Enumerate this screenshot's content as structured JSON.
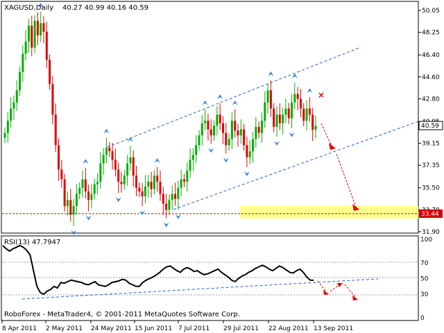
{
  "chart_data": [
    {
      "type": "candlestick",
      "symbol_label": "XAGUSD,Daily",
      "ohlc_label": "40.27 40.99 40.16 40.59",
      "y_ticks": [
        "50.05",
        "48.25",
        "46.40",
        "44.60",
        "42.80",
        "40.95",
        "39.15",
        "37.35",
        "35.50",
        "33.70",
        "31.90"
      ],
      "ylim": [
        31.9,
        50.05
      ],
      "x_ticks": [
        "8 Apr 2011",
        "2 May 2011",
        "24 May 2011",
        "15 Jun 2011",
        "7 Jul 2011",
        "29 Jul 2011",
        "22 Aug 2011",
        "13 Sep 2011"
      ],
      "current_price": "40.59",
      "support_level": "33.44",
      "footer_text": "RoboForex - MetaTrader4, © 2001-2011 MetaQuotes Software Corp.",
      "closes": [
        40.0,
        41.0,
        42.0,
        42.5,
        43.5,
        45.0,
        46.5,
        47.5,
        48.8,
        47.0,
        49.2,
        48.0,
        49.0,
        48.3,
        46.0,
        44.0,
        41.5,
        39.0,
        37.0,
        36.2,
        34.0,
        34.5,
        33.3,
        34.0,
        35.0,
        35.5,
        36.2,
        35.2,
        34.5,
        35.0,
        35.8,
        36.0,
        37.5,
        38.2,
        38.8,
        38.5,
        37.8,
        37.0,
        36.0,
        35.8,
        36.5,
        37.5,
        38.0,
        36.5,
        35.5,
        35.2,
        34.8,
        35.6,
        36.0,
        35.4,
        36.5,
        36.0,
        35.0,
        34.2,
        33.7,
        34.5,
        35.0,
        34.6,
        35.5,
        36.2,
        36.0,
        36.9,
        37.8,
        38.2,
        39.0,
        39.8,
        40.8,
        41.0,
        40.3,
        39.8,
        40.6,
        41.5,
        40.8,
        40.0,
        39.0,
        39.5,
        41.0,
        40.2,
        39.8,
        40.3,
        39.0,
        38.0,
        38.5,
        39.5,
        40.5,
        40.0,
        41.0,
        42.5,
        43.5,
        42.0,
        40.5,
        41.5,
        40.8,
        41.5,
        42.0,
        41.2,
        42.5,
        43.2,
        42.8,
        42.0,
        41.0,
        42.0,
        41.5,
        40.27,
        40.59
      ],
      "annotations": {
        "rsi_label": "RSI(13) 47.7947",
        "rsi_ticks": [
          "100",
          "70",
          "50",
          "30",
          "0"
        ],
        "rsi_values": [
          92,
          88,
          85,
          88,
          90,
          92,
          90,
          86,
          80,
          60,
          40,
          32,
          30,
          34,
          36,
          40,
          38,
          45,
          44,
          46,
          48,
          47,
          46,
          45,
          43,
          42,
          44,
          46,
          42,
          41,
          40,
          42,
          45,
          46,
          47,
          49,
          48,
          44,
          42,
          40,
          40,
          45,
          48,
          50,
          52,
          55,
          58,
          62,
          65,
          66,
          63,
          60,
          58,
          62,
          64,
          62,
          59,
          60,
          57,
          55,
          56,
          58,
          60,
          62,
          58,
          55,
          52,
          48,
          46,
          50,
          53,
          55,
          58,
          60,
          63,
          65,
          67,
          65,
          62,
          60,
          63,
          66,
          64,
          61,
          58,
          57,
          60,
          62,
          58,
          52,
          48,
          47.79
        ]
      }
    }
  ]
}
